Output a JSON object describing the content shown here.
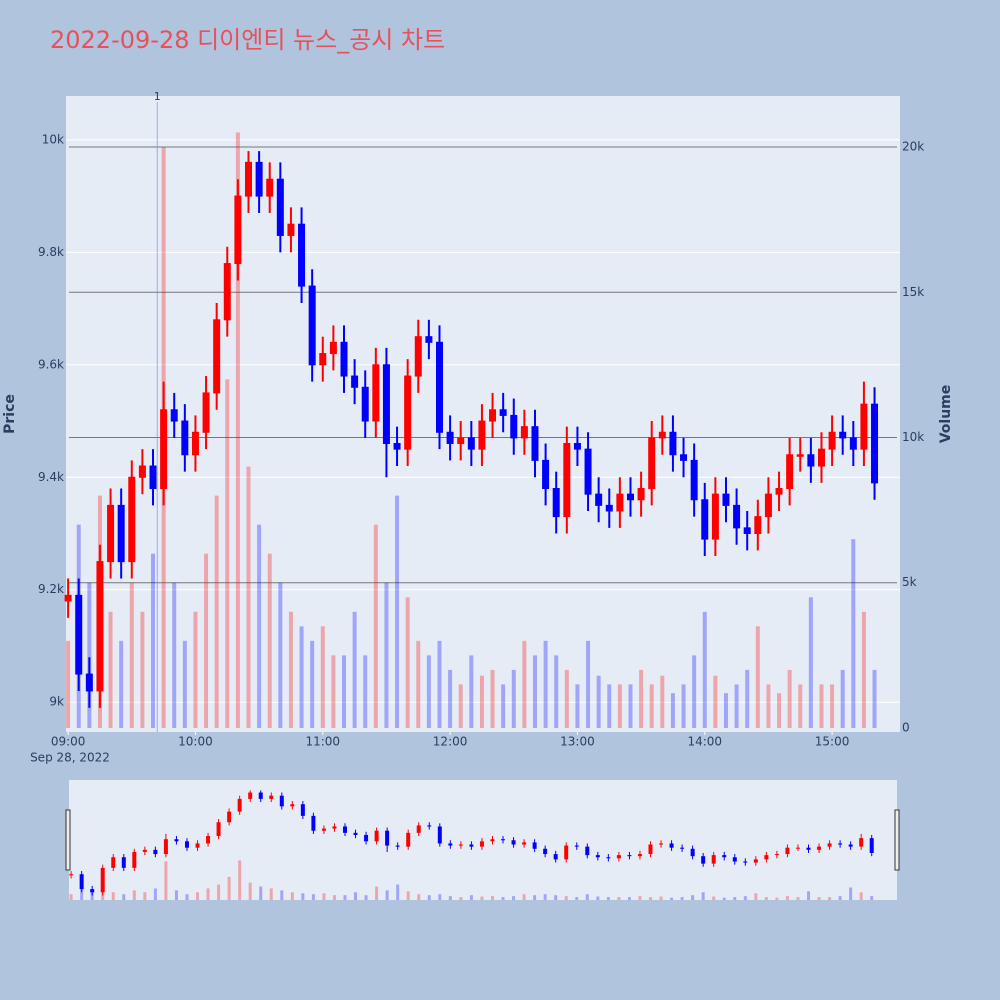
{
  "chart_data": {
    "type": "candlestick",
    "title": "2022-09-28 디이엔티 뉴스_공시 차트",
    "ylabel": "Price",
    "y2label": "Volume",
    "x_date_label": "Sep 28, 2022",
    "increasing_color": "#ff0000",
    "decreasing_color": "#0000ff",
    "x": [
      "09:00",
      "09:05",
      "09:10",
      "09:15",
      "09:20",
      "09:25",
      "09:30",
      "09:35",
      "09:40",
      "09:45",
      "09:50",
      "09:55",
      "10:00",
      "10:05",
      "10:10",
      "10:15",
      "10:20",
      "10:25",
      "10:30",
      "10:35",
      "10:40",
      "10:45",
      "10:50",
      "10:55",
      "11:00",
      "11:05",
      "11:10",
      "11:15",
      "11:20",
      "11:25",
      "11:30",
      "11:35",
      "11:40",
      "11:45",
      "11:50",
      "11:55",
      "12:00",
      "12:05",
      "12:10",
      "12:15",
      "12:20",
      "12:25",
      "12:30",
      "12:35",
      "12:40",
      "12:45",
      "12:50",
      "12:55",
      "13:00",
      "13:05",
      "13:10",
      "13:15",
      "13:20",
      "13:25",
      "13:30",
      "13:35",
      "13:40",
      "13:45",
      "13:50",
      "13:55",
      "14:00",
      "14:05",
      "14:10",
      "14:15",
      "14:20",
      "14:25",
      "14:30",
      "14:35",
      "14:40",
      "14:45",
      "14:50",
      "14:55",
      "15:00",
      "15:05",
      "15:10",
      "15:15",
      "15:20"
    ],
    "open": [
      9180,
      9190,
      9050,
      9020,
      9250,
      9350,
      9250,
      9400,
      9420,
      9380,
      9520,
      9500,
      9440,
      9480,
      9550,
      9680,
      9780,
      9900,
      9960,
      9900,
      9930,
      9830,
      9850,
      9740,
      9600,
      9620,
      9640,
      9580,
      9560,
      9500,
      9600,
      9460,
      9450,
      9580,
      9650,
      9640,
      9480,
      9460,
      9470,
      9450,
      9500,
      9520,
      9510,
      9470,
      9490,
      9430,
      9380,
      9330,
      9460,
      9450,
      9370,
      9350,
      9340,
      9370,
      9360,
      9380,
      9470,
      9480,
      9440,
      9430,
      9360,
      9290,
      9370,
      9350,
      9310,
      9300,
      9330,
      9370,
      9380,
      9440,
      9440,
      9420,
      9450,
      9480,
      9470,
      9450,
      9530
    ],
    "high": [
      9220,
      9220,
      9080,
      9280,
      9380,
      9380,
      9430,
      9450,
      9450,
      9570,
      9550,
      9530,
      9510,
      9580,
      9710,
      9810,
      9930,
      9980,
      9980,
      9960,
      9960,
      9880,
      9880,
      9770,
      9650,
      9670,
      9670,
      9610,
      9590,
      9630,
      9630,
      9490,
      9610,
      9680,
      9680,
      9670,
      9510,
      9500,
      9500,
      9530,
      9550,
      9550,
      9540,
      9520,
      9520,
      9460,
      9410,
      9490,
      9490,
      9480,
      9400,
      9380,
      9400,
      9400,
      9410,
      9500,
      9510,
      9510,
      9470,
      9460,
      9390,
      9400,
      9400,
      9380,
      9340,
      9360,
      9400,
      9410,
      9470,
      9470,
      9470,
      9480,
      9510,
      9510,
      9500,
      9570,
      9560
    ],
    "low": [
      9150,
      9020,
      8990,
      8990,
      9220,
      9220,
      9220,
      9370,
      9350,
      9350,
      9470,
      9410,
      9410,
      9450,
      9520,
      9650,
      9750,
      9870,
      9870,
      9870,
      9800,
      9800,
      9710,
      9570,
      9570,
      9590,
      9550,
      9530,
      9470,
      9470,
      9400,
      9420,
      9420,
      9550,
      9610,
      9450,
      9430,
      9430,
      9420,
      9420,
      9470,
      9480,
      9440,
      9440,
      9400,
      9350,
      9300,
      9300,
      9420,
      9340,
      9320,
      9310,
      9310,
      9330,
      9330,
      9350,
      9440,
      9410,
      9400,
      9330,
      9260,
      9260,
      9320,
      9280,
      9270,
      9270,
      9300,
      9340,
      9350,
      9410,
      9390,
      9390,
      9420,
      9440,
      9420,
      9420,
      9360
    ],
    "close": [
      9190,
      9050,
      9020,
      9250,
      9350,
      9250,
      9400,
      9420,
      9380,
      9520,
      9500,
      9440,
      9480,
      9550,
      9680,
      9780,
      9900,
      9960,
      9900,
      9930,
      9830,
      9850,
      9740,
      9600,
      9620,
      9640,
      9580,
      9560,
      9500,
      9600,
      9460,
      9450,
      9580,
      9650,
      9640,
      9480,
      9460,
      9470,
      9450,
      9500,
      9520,
      9510,
      9470,
      9490,
      9430,
      9380,
      9330,
      9460,
      9450,
      9370,
      9350,
      9340,
      9370,
      9360,
      9380,
      9470,
      9480,
      9440,
      9430,
      9360,
      9290,
      9370,
      9350,
      9310,
      9300,
      9330,
      9370,
      9380,
      9440,
      9440,
      9420,
      9450,
      9480,
      9470,
      9450,
      9530,
      9390
    ],
    "volume": [
      3000,
      7000,
      5000,
      8000,
      4000,
      3000,
      5000,
      4000,
      6000,
      20000,
      5000,
      3000,
      4000,
      6000,
      8000,
      12000,
      20500,
      9000,
      7000,
      6000,
      5000,
      4000,
      3500,
      3000,
      3500,
      2500,
      2500,
      4000,
      2500,
      7000,
      5000,
      8000,
      4500,
      3000,
      2500,
      3000,
      2000,
      1500,
      2500,
      1800,
      2000,
      1500,
      2000,
      3000,
      2500,
      3000,
      2500,
      2000,
      1500,
      3000,
      1800,
      1500,
      1500,
      1500,
      2000,
      1500,
      1800,
      1200,
      1500,
      2500,
      4000,
      1800,
      1200,
      1500,
      2000,
      3500,
      1500,
      1200,
      2000,
      1500,
      4500,
      1500,
      1500,
      2000,
      6500,
      4000,
      2000
    ],
    "xlim": [
      "08:59",
      "15:32"
    ],
    "xticks": [
      "09:00",
      "10:00",
      "11:00",
      "12:00",
      "13:00",
      "14:00",
      "15:00"
    ],
    "ylim": [
      8947,
      10078
    ],
    "yticks": [
      {
        "value": 9000,
        "label": "9k"
      },
      {
        "value": 9200,
        "label": "9.2k"
      },
      {
        "value": 9400,
        "label": "9.4k"
      },
      {
        "value": 9600,
        "label": "9.6k"
      },
      {
        "value": 9800,
        "label": "9.8k"
      },
      {
        "value": 10000,
        "label": "10k"
      }
    ],
    "y2lim": [
      -138,
      21756
    ],
    "y2ticks": [
      0,
      {
        "value": 5000,
        "label": "5k"
      },
      {
        "value": 10000,
        "label": "10k"
      },
      {
        "value": 15000,
        "label": "15k"
      },
      {
        "value": 20000,
        "label": "20k"
      }
    ],
    "annotations": [
      {
        "x": "09:42",
        "text": "1"
      }
    ]
  }
}
